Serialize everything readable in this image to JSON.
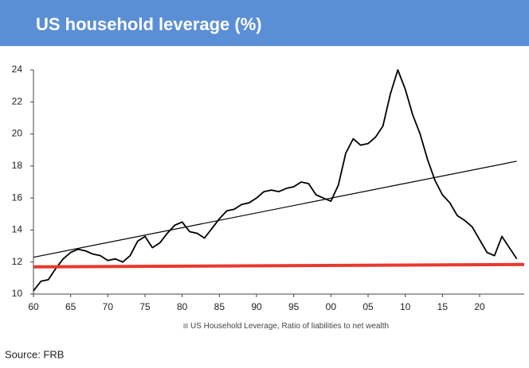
{
  "chart_data": {
    "type": "line",
    "title": "US household leverage (%)",
    "source": "Source: FRB",
    "xlim": [
      1960,
      2026
    ],
    "xticks": [
      {
        "value": 1960,
        "label": "60"
      },
      {
        "value": 1965,
        "label": "65"
      },
      {
        "value": 1970,
        "label": "70"
      },
      {
        "value": 1975,
        "label": "75"
      },
      {
        "value": 1980,
        "label": "80"
      },
      {
        "value": 1985,
        "label": "85"
      },
      {
        "value": 1990,
        "label": "90"
      },
      {
        "value": 1995,
        "label": "95"
      },
      {
        "value": 2000,
        "label": "00"
      },
      {
        "value": 2005,
        "label": "05"
      },
      {
        "value": 2010,
        "label": "10"
      },
      {
        "value": 2015,
        "label": "15"
      },
      {
        "value": 2020,
        "label": "20"
      }
    ],
    "ylim": [
      10,
      24
    ],
    "yticks": [
      10,
      12,
      14,
      16,
      18,
      20,
      22,
      24
    ],
    "grid": false,
    "legend": "bottom",
    "series": [
      {
        "name": "US Household Leverage, Ratio of liabilities to net wealth",
        "color": "#000000",
        "legend_color": "#bfbfbf",
        "width": 1.8,
        "x": [
          1960,
          1961,
          1962,
          1963,
          1964,
          1965,
          1966,
          1967,
          1968,
          1969,
          1970,
          1971,
          1972,
          1973,
          1974,
          1975,
          1976,
          1977,
          1978,
          1979,
          1980,
          1981,
          1982,
          1983,
          1984,
          1985,
          1986,
          1987,
          1988,
          1989,
          1990,
          1991,
          1992,
          1993,
          1994,
          1995,
          1996,
          1997,
          1998,
          1999,
          2000,
          2001,
          2002,
          2003,
          2004,
          2005,
          2006,
          2007,
          2008,
          2009,
          2010,
          2011,
          2012,
          2013,
          2014,
          2015,
          2016,
          2017,
          2018,
          2019,
          2020,
          2021,
          2022,
          2023,
          2024,
          2025
        ],
        "values": [
          10.2,
          10.8,
          10.9,
          11.6,
          12.2,
          12.6,
          12.8,
          12.7,
          12.5,
          12.4,
          12.1,
          12.2,
          12.0,
          12.4,
          13.3,
          13.6,
          12.9,
          13.2,
          13.8,
          14.3,
          14.5,
          13.9,
          13.8,
          13.5,
          14.1,
          14.7,
          15.2,
          15.3,
          15.6,
          15.7,
          16.0,
          16.4,
          16.5,
          16.4,
          16.6,
          16.7,
          17.0,
          16.9,
          16.2,
          16.0,
          15.8,
          16.8,
          18.8,
          19.7,
          19.3,
          19.4,
          19.8,
          20.5,
          22.5,
          24.0,
          22.8,
          21.2,
          20.0,
          18.4,
          17.1,
          16.2,
          15.7,
          14.9,
          14.6,
          14.2,
          13.4,
          12.6,
          12.4,
          13.6,
          12.9,
          12.2
        ]
      },
      {
        "color": "#000000",
        "width": 1.2,
        "x": [
          1960,
          2025
        ],
        "values": [
          12.3,
          18.3
        ]
      },
      {
        "color": "#e8392f",
        "width": 4,
        "x": [
          1960,
          2026
        ],
        "values": [
          11.7,
          11.85
        ]
      }
    ]
  }
}
